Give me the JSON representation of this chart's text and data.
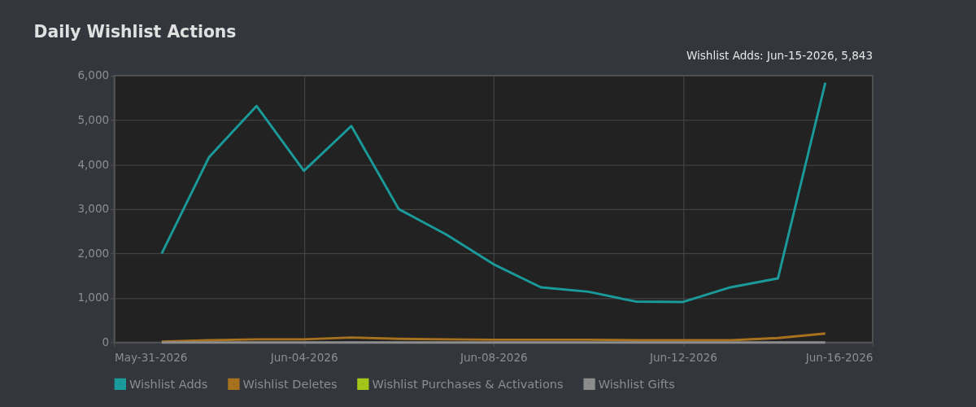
{
  "chart_data": {
    "type": "line",
    "title": "Daily Wishlist Actions",
    "x": [
      "2026-06-01",
      "2026-06-02",
      "2026-06-03",
      "2026-06-04",
      "2026-06-05",
      "2026-06-06",
      "2026-06-07",
      "2026-06-08",
      "2026-06-09",
      "2026-06-10",
      "2026-06-11",
      "2026-06-12",
      "2026-06-13",
      "2026-06-14",
      "2026-06-15"
    ],
    "series": [
      {
        "name": "Wishlist Adds",
        "color": "#1a9a9a",
        "values": [
          2000,
          4170,
          5320,
          3860,
          4870,
          3000,
          2430,
          1760,
          1240,
          1140,
          920,
          910,
          1240,
          1440,
          5843
        ]
      },
      {
        "name": "Wishlist Deletes",
        "color": "#a8711e",
        "values": [
          20,
          50,
          70,
          70,
          110,
          80,
          70,
          60,
          60,
          60,
          50,
          50,
          50,
          100,
          200
        ]
      },
      {
        "name": "Wishlist Purchases & Activations",
        "color": "#a4c61a",
        "values": [
          null,
          null,
          null,
          null,
          null,
          null,
          null,
          null,
          null,
          null,
          null,
          null,
          null,
          null,
          null
        ]
      },
      {
        "name": "Wishlist Gifts",
        "color": "#8c8c8c",
        "values": [
          0,
          0,
          0,
          0,
          0,
          0,
          0,
          0,
          0,
          0,
          0,
          0,
          0,
          0,
          0
        ]
      }
    ],
    "xlim": [
      "2026-05-31",
      "2026-06-16"
    ],
    "xticks": [
      {
        "value": "2026-05-31",
        "label": "May-31-2026"
      },
      {
        "value": "2026-06-04",
        "label": "Jun-04-2026"
      },
      {
        "value": "2026-06-08",
        "label": "Jun-08-2026"
      },
      {
        "value": "2026-06-12",
        "label": "Jun-12-2026"
      },
      {
        "value": "2026-06-16",
        "label": "Jun-16-2026"
      }
    ],
    "ylim": [
      0,
      6000
    ],
    "yticks": [
      {
        "value": 0,
        "label": "0"
      },
      {
        "value": 1000,
        "label": "1,000"
      },
      {
        "value": 2000,
        "label": "2,000"
      },
      {
        "value": 3000,
        "label": "3,000"
      },
      {
        "value": 4000,
        "label": "4,000"
      },
      {
        "value": 5000,
        "label": "5,000"
      },
      {
        "value": 6000,
        "label": "6,000"
      }
    ],
    "annotations": [
      {
        "text": "Wishlist Adds: Jun-15-2026, 5,843",
        "x": "2026-06-15",
        "y": 5843
      }
    ],
    "grid": true,
    "legend": "bottom",
    "marker": "none",
    "line_style": "solid"
  }
}
